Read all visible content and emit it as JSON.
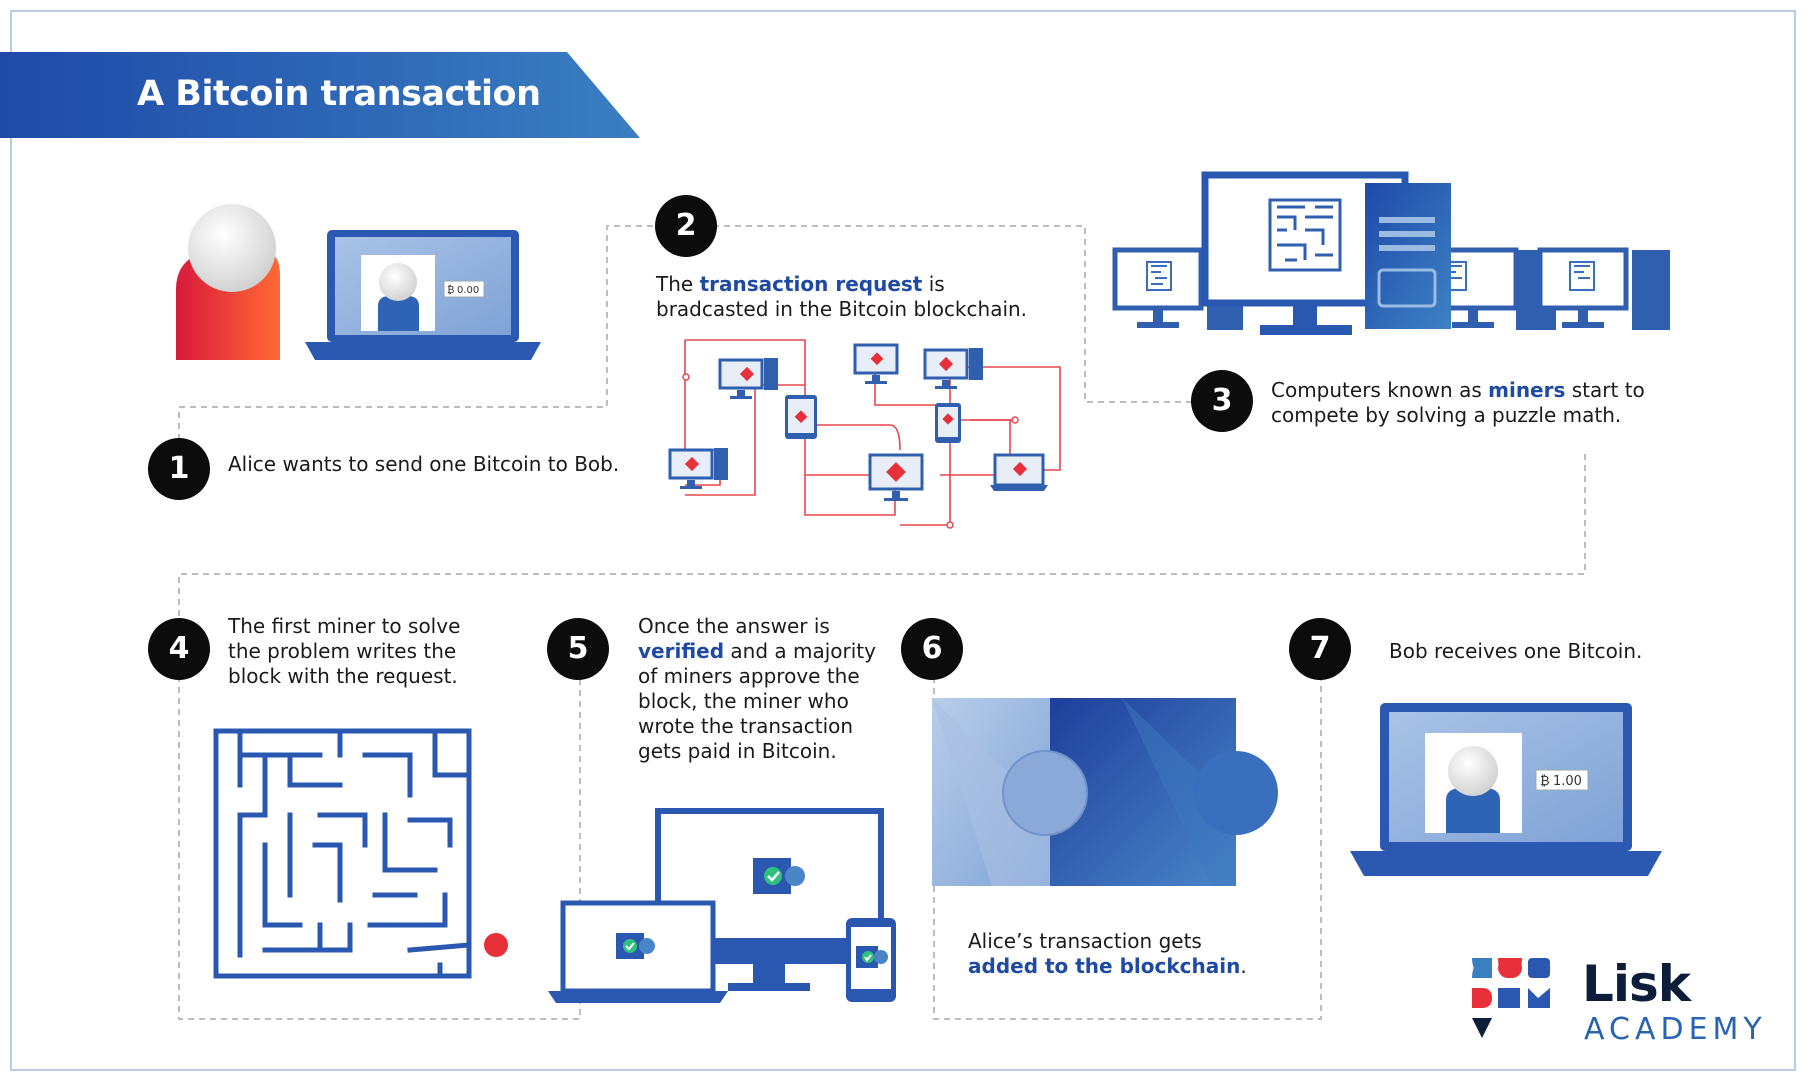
{
  "title": "A Bitcoin transaction",
  "steps": [
    {
      "number": "1",
      "text": "Alice wants to send one Bitcoin to Bob."
    },
    {
      "number": "2",
      "text_pre": "The ",
      "highlight": "transaction request",
      "text_post": " is",
      "line2": "bradcasted in the Bitcoin blockchain."
    },
    {
      "number": "3",
      "line1_pre": "Computers known as ",
      "highlight": "miners",
      "line1_post": " start to",
      "line2": "compete by solving a puzzle math."
    },
    {
      "number": "4",
      "lines": [
        "The first miner to solve",
        "the problem writes the",
        "block with the request."
      ]
    },
    {
      "number": "5",
      "line1": "Once the answer is",
      "highlight": "verified",
      "line2_post": " and a majority",
      "lines": [
        "of miners approve the",
        "block, the miner who",
        "wrote the transaction",
        "gets paid in Bitcoin."
      ]
    },
    {
      "number": "6",
      "line1": "Alice’s transaction gets",
      "highlight": "added to the blockchain",
      "line2_post": "."
    },
    {
      "number": "7",
      "text": "Bob receives one Bitcoin."
    }
  ],
  "balances": {
    "alice": "0.00",
    "bob": "1.00"
  },
  "currency_symbol": "₿",
  "logo": {
    "word": "Lisk",
    "sub": "ACADEMY"
  },
  "colors": {
    "brand_blue": "#1e4aa3",
    "banner_start": "#1f4aa8",
    "banner_end": "#3a7fc1",
    "accent_red": "#e8303a",
    "badge": "#0c0c0c",
    "dash": "#bdbdbd"
  },
  "icons": [
    "person-icon",
    "laptop-icon",
    "network-icon",
    "computer-icon",
    "maze-icon",
    "puzzle-icon",
    "check-icon",
    "phone-icon"
  ]
}
